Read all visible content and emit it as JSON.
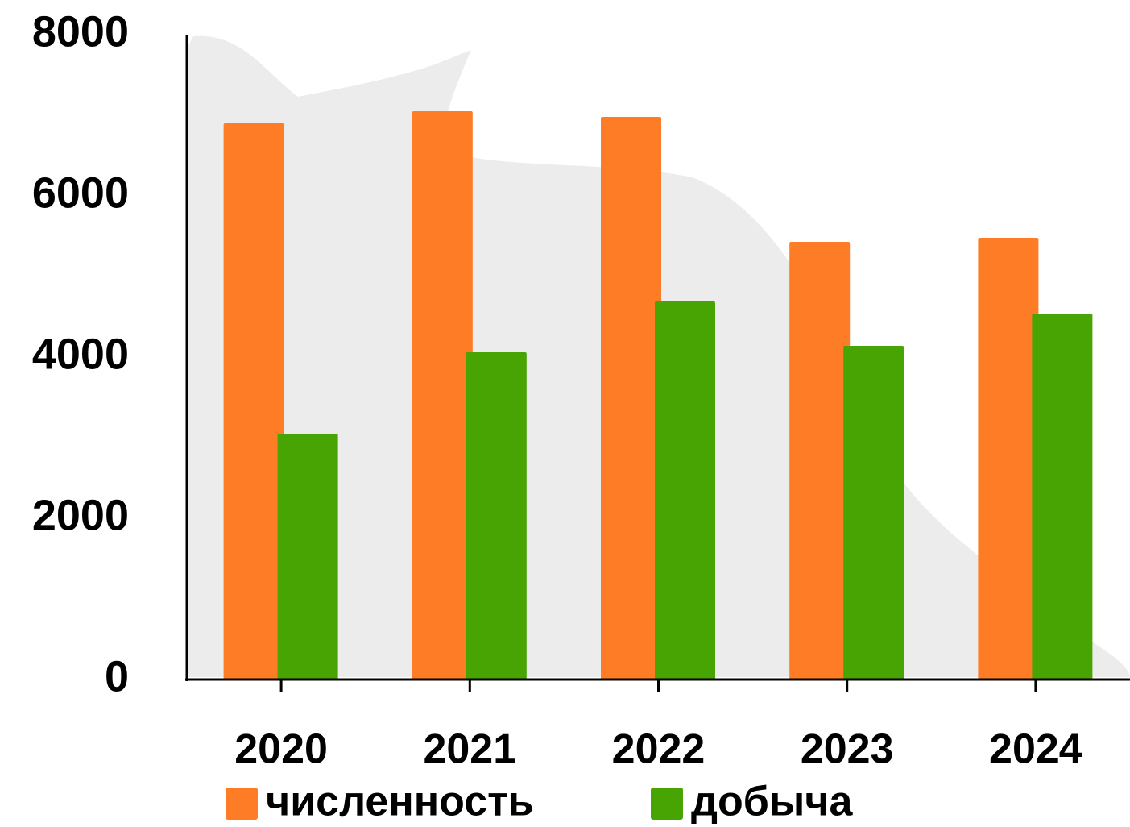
{
  "chart_data": {
    "type": "bar",
    "categories": [
      "2020",
      "2021",
      "2022",
      "2023",
      "2024"
    ],
    "series": [
      {
        "name": "численность",
        "color": "#fe7c25",
        "values": [
          6900,
          7050,
          6980,
          5430,
          5480
        ]
      },
      {
        "name": "добыча",
        "color": "#47a402",
        "values": [
          3050,
          4060,
          4690,
          4140,
          4540
        ]
      }
    ],
    "ylim": [
      0,
      8000
    ],
    "yticks": [
      0,
      2000,
      4000,
      6000,
      8000
    ],
    "grid": false,
    "legend": "bottom"
  }
}
